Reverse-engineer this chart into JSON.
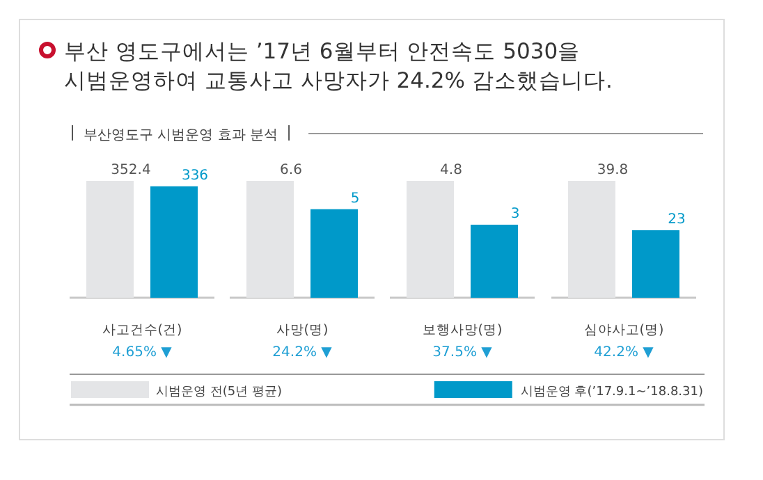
{
  "chart_data": [
    {
      "type": "bar",
      "title": "부산 영도구에서는 ’17년 6월부터 안전속도 5030을 시범운영하여 교통사고 사망자가 24.2% 감소했습니다.",
      "subtitle": "부산영도구 시범운영 효과 분석",
      "categories": [
        "사고건수(건)"
      ],
      "series": [
        {
          "name": "시범운영 전(5년 평균)",
          "color": "#e4e5e7",
          "values": [
            352.4
          ]
        },
        {
          "name": "시범운영 후(’17.9.1~’18.8.31)",
          "color": "#0099c9",
          "values": [
            336
          ]
        }
      ],
      "data_labels": true,
      "legend": "bottom",
      "annotations": [
        "4.65% ▼"
      ]
    },
    {
      "type": "bar",
      "categories": [
        "사망(명)"
      ],
      "series": [
        {
          "color": "#e4e5e7",
          "values": [
            6.6
          ]
        },
        {
          "color": "#0099c9",
          "values": [
            5
          ]
        }
      ],
      "data_labels": true,
      "annotations": [
        "24.2% ▼"
      ]
    },
    {
      "type": "bar",
      "categories": [
        "보행사망(명)"
      ],
      "series": [
        {
          "color": "#e4e5e7",
          "values": [
            4.8
          ]
        },
        {
          "color": "#0099c9",
          "values": [
            3
          ]
        }
      ],
      "data_labels": true,
      "annotations": [
        "37.5% ▼"
      ]
    },
    {
      "type": "bar",
      "categories": [
        "심야사고(명)"
      ],
      "series": [
        {
          "color": "#e4e5e7",
          "values": [
            39.8
          ]
        },
        {
          "color": "#0099c9",
          "values": [
            23
          ]
        }
      ],
      "data_labels": true,
      "annotations": [
        "42.2% ▼"
      ]
    }
  ]
}
